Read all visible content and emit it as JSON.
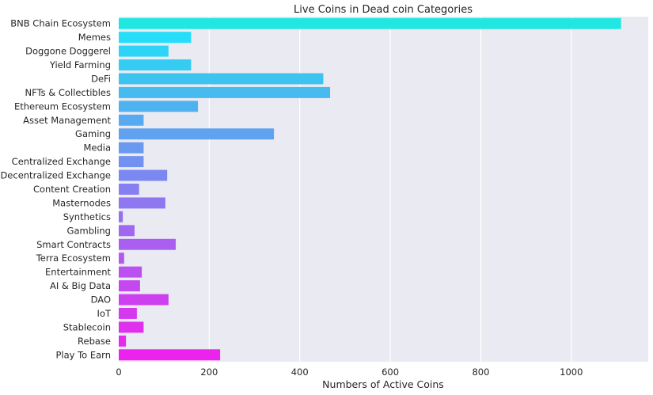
{
  "chart_data": {
    "type": "bar",
    "orientation": "horizontal",
    "title": "Live Coins in Dead coin Categories",
    "xlabel": "Numbers of Active Coins",
    "ylabel": "",
    "xlim": [
      0,
      1170
    ],
    "xticks": [
      0,
      200,
      400,
      600,
      800,
      1000
    ],
    "grid": true,
    "legend": "none",
    "background_color": "#eaeaf2",
    "palette": "cool",
    "categories": [
      "BNB Chain Ecosystem",
      "Memes",
      "Doggone Doggerel",
      "Yield Farming",
      "DeFi",
      "NFTs & Collectibles",
      "Ethereum Ecosystem",
      "Asset Management",
      "Gaming",
      "Media",
      "Centralized Exchange",
      "Decentralized Exchange",
      "Content Creation",
      "Masternodes",
      "Synthetics",
      "Gambling",
      "Smart Contracts",
      "Terra Ecosystem",
      "Entertainment",
      "AI & Big Data",
      "DAO",
      "IoT",
      "Stablecoin",
      "Rebase",
      "Play To Earn"
    ],
    "values": [
      1110,
      160,
      110,
      160,
      452,
      467,
      175,
      55,
      343,
      55,
      55,
      107,
      45,
      103,
      9,
      35,
      126,
      12,
      51,
      47,
      110,
      40,
      55,
      16,
      224
    ],
    "colors": [
      "#22e7e0",
      "#27defa",
      "#2cd5f7",
      "#35ccf3",
      "#3dc3f0",
      "#46bbef",
      "#4fb2f0",
      "#58aaf0",
      "#61a2f0",
      "#6a99f0",
      "#7391f1",
      "#7c88f1",
      "#857ff1",
      "#8e77f1",
      "#9770f1",
      "#a068f1",
      "#a960f0",
      "#b258f0",
      "#bb50f0",
      "#c448f0",
      "#cd40ef",
      "#d638ef",
      "#df30ee",
      "#e52aed",
      "#eb23ec"
    ]
  }
}
